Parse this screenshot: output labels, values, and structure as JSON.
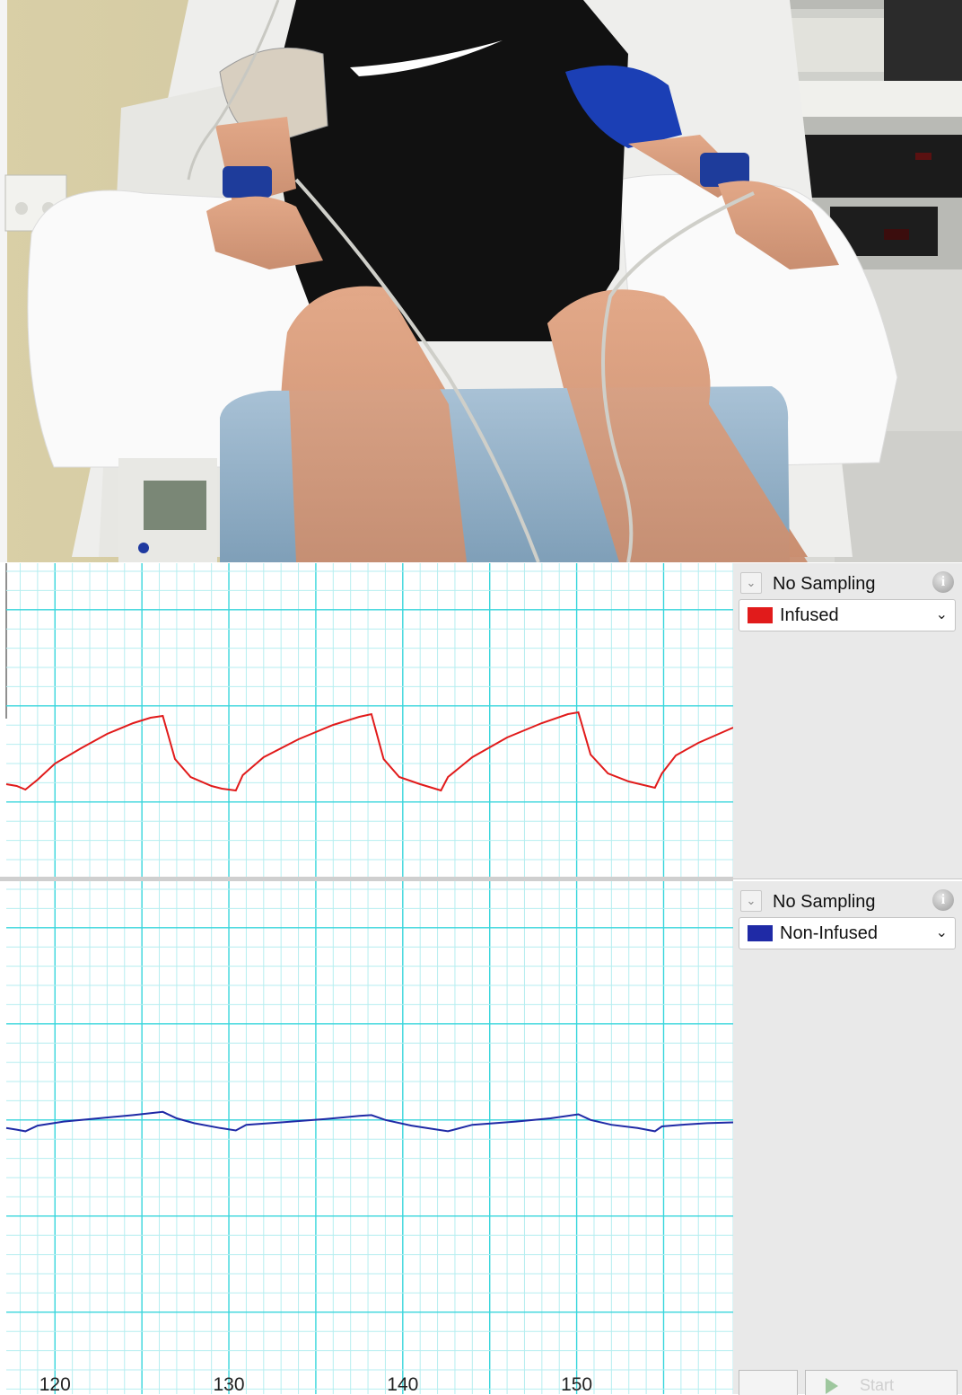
{
  "photo": {
    "description_icon": "photo-of-seated-subject-with-bp-cuffs"
  },
  "channels": [
    {
      "sampling_label": "No Sampling",
      "name": "Infused",
      "color": "#e11b1b",
      "info_icon": "info-icon"
    },
    {
      "sampling_label": "No Sampling",
      "name": "Non-Infused",
      "color": "#1f2aa6",
      "info_icon": "info-icon"
    }
  ],
  "chart_data": {
    "type": "line",
    "x_ticks": [
      "120",
      "130",
      "140",
      "150"
    ],
    "xlim": [
      117.2,
      159
    ],
    "grid": true,
    "series": [
      {
        "name": "Infused",
        "x": [
          117.2,
          117.8,
          118.3,
          119.0,
          120.0,
          121.5,
          123.0,
          124.5,
          125.5,
          126.2,
          126.9,
          127.8,
          129.0,
          129.6,
          130.4,
          130.8,
          132.0,
          134.0,
          136.0,
          137.5,
          138.2,
          138.9,
          139.8,
          141.0,
          142.2,
          142.6,
          144.0,
          146.0,
          148.0,
          149.5,
          150.1,
          150.8,
          151.8,
          153.0,
          154.5,
          154.9,
          155.7,
          157.0,
          159.0
        ],
        "y": [
          0.12,
          0.1,
          0.06,
          0.17,
          0.35,
          0.52,
          0.68,
          0.8,
          0.86,
          0.88,
          0.4,
          0.2,
          0.1,
          0.07,
          0.05,
          0.22,
          0.42,
          0.62,
          0.78,
          0.87,
          0.9,
          0.4,
          0.2,
          0.12,
          0.05,
          0.2,
          0.42,
          0.64,
          0.8,
          0.9,
          0.92,
          0.45,
          0.24,
          0.15,
          0.08,
          0.24,
          0.44,
          0.58,
          0.75
        ]
      },
      {
        "name": "Non-Infused",
        "x": [
          117.2,
          117.8,
          118.3,
          119.0,
          120.5,
          122.5,
          124.5,
          126.2,
          127.0,
          128.0,
          129.5,
          130.4,
          131.0,
          133.0,
          135.5,
          137.5,
          138.2,
          139.0,
          140.5,
          142.0,
          142.6,
          144.0,
          146.5,
          148.5,
          150.1,
          150.8,
          152.0,
          153.5,
          154.5,
          154.9,
          156.0,
          157.5,
          159.0
        ],
        "y": [
          0.38,
          0.36,
          0.34,
          0.41,
          0.46,
          0.5,
          0.54,
          0.58,
          0.5,
          0.44,
          0.38,
          0.35,
          0.42,
          0.45,
          0.49,
          0.53,
          0.54,
          0.48,
          0.41,
          0.36,
          0.34,
          0.42,
          0.46,
          0.5,
          0.55,
          0.48,
          0.42,
          0.38,
          0.34,
          0.4,
          0.42,
          0.44,
          0.45
        ]
      }
    ]
  },
  "controls": {
    "start_label": "Start"
  }
}
